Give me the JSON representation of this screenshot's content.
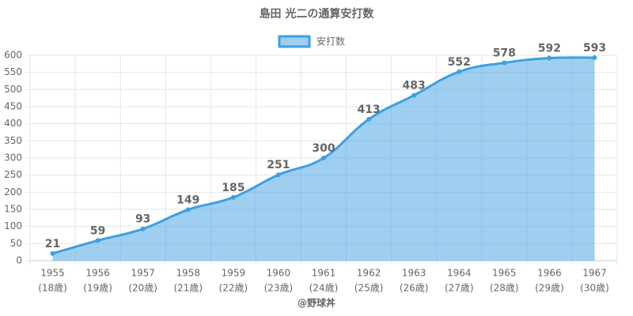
{
  "chart_data": {
    "type": "area",
    "title": "島田 光二の通算安打数",
    "categories": [
      [
        "1955",
        "(18歳)"
      ],
      [
        "1956",
        "(19歳)"
      ],
      [
        "1957",
        "(20歳)"
      ],
      [
        "1958",
        "(21歳)"
      ],
      [
        "1959",
        "(22歳)"
      ],
      [
        "1960",
        "(23歳)"
      ],
      [
        "1961",
        "(24歳)"
      ],
      [
        "1962",
        "(25歳)"
      ],
      [
        "1963",
        "(26歳)"
      ],
      [
        "1964",
        "(27歳)"
      ],
      [
        "1965",
        "(28歳)"
      ],
      [
        "1966",
        "(29歳)"
      ],
      [
        "1967",
        "(30歳)"
      ]
    ],
    "series": [
      {
        "name": "安打数",
        "color": "#3d9fe2",
        "values": [
          21,
          59,
          93,
          149,
          185,
          251,
          300,
          413,
          483,
          552,
          578,
          592,
          593
        ]
      }
    ],
    "ylim": [
      0,
      600
    ],
    "yticks": [
      0,
      50,
      100,
      150,
      200,
      250,
      300,
      350,
      400,
      450,
      500,
      550,
      600
    ],
    "grid": true,
    "legend": "top",
    "footer": "@野球丼"
  }
}
